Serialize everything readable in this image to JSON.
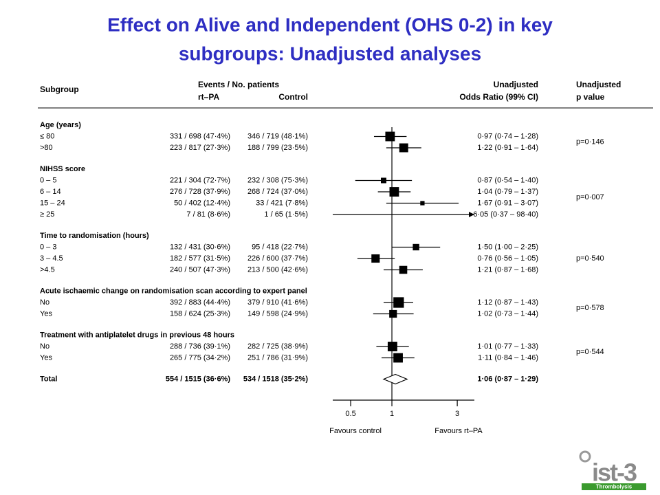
{
  "chart_data": {
    "type": "forest",
    "title": [
      "Effect on Alive and Independent (OHS 0-2) in key",
      "subgroups: Unadjusted analyses"
    ],
    "headers": {
      "subgroup": "Subgroup",
      "events": "Events / No. patients",
      "rtpa": "rt–PA",
      "control": "Control",
      "or_top": "Unadjusted",
      "or_bottom": "Odds Ratio (99% CI)",
      "p_top": "Unadjusted",
      "p_bottom": "p value"
    },
    "x_labels": [
      "Favours control",
      "Favours rt–PA"
    ],
    "xscale": "log",
    "xlim": [
      0.37,
      4
    ],
    "xticks": [
      0.5,
      1,
      3
    ],
    "reference": 1,
    "color": "#000000",
    "groups": [
      {
        "title": "Age (years)",
        "p": "p=0·146",
        "rows": [
          {
            "label": "≤ 80",
            "rtpa": "331 / 698  (47·4%)",
            "control": "346 / 719  (48·1%)",
            "or": 0.97,
            "lo": 0.74,
            "hi": 1.28,
            "or_label": "0·97 (0·74 – 1·28)"
          },
          {
            "label": ">80",
            "rtpa": "223 / 817  (27·3%)",
            "control": "188 / 799  (23·5%)",
            "or": 1.22,
            "lo": 0.91,
            "hi": 1.64,
            "or_label": "1·22 (0·91 – 1·64)"
          }
        ]
      },
      {
        "title": "NIHSS score",
        "p": "p=0·007",
        "rows": [
          {
            "label": "0 – 5",
            "rtpa": "221 / 304  (72·7%)",
            "control": "232 / 308  (75·3%)",
            "or": 0.87,
            "lo": 0.54,
            "hi": 1.4,
            "or_label": "0·87 (0·54 – 1·40)"
          },
          {
            "label": "6 – 14",
            "rtpa": "276 / 728  (37·9%)",
            "control": "268 / 724  (37·0%)",
            "or": 1.04,
            "lo": 0.79,
            "hi": 1.37,
            "or_label": "1·04 (0·79 – 1·37)"
          },
          {
            "label": "15 – 24",
            "rtpa": "50 / 402  (12·4%)",
            "control": "33 / 421  (7·8%)",
            "or": 1.67,
            "lo": 0.91,
            "hi": 3.07,
            "or_label": "1·67 (0·91 – 3·07)"
          },
          {
            "label": "≥ 25",
            "rtpa": "7 / 81  (8·6%)",
            "control": "1 / 65  (1·5%)",
            "or": 6.05,
            "lo": 0.37,
            "hi": 98.4,
            "or_label": "6·05 (0·37 – 98·40)"
          }
        ]
      },
      {
        "title": "Time to randomisation (hours)",
        "p": "p=0·540",
        "rows": [
          {
            "label": "0 – 3",
            "rtpa": "132 / 431  (30·6%)",
            "control": "95 / 418  (22·7%)",
            "or": 1.5,
            "lo": 1.0,
            "hi": 2.25,
            "or_label": "1·50 (1·00 – 2·25)"
          },
          {
            "label": "3 – 4.5",
            "rtpa": "182 / 577  (31·5%)",
            "control": "226 / 600  (37·7%)",
            "or": 0.76,
            "lo": 0.56,
            "hi": 1.05,
            "or_label": "0·76 (0·56 – 1·05)"
          },
          {
            "label": ">4.5",
            "rtpa": "240 / 507  (47·3%)",
            "control": "213 / 500  (42·6%)",
            "or": 1.21,
            "lo": 0.87,
            "hi": 1.68,
            "or_label": "1·21 (0·87 – 1·68)"
          }
        ]
      },
      {
        "title": "Acute ischaemic change on randomisation scan according to expert panel",
        "p": "p=0·578",
        "rows": [
          {
            "label": "No",
            "rtpa": "392 / 883  (44·4%)",
            "control": "379 / 910  (41·6%)",
            "or": 1.12,
            "lo": 0.87,
            "hi": 1.43,
            "or_label": "1·12 (0·87 – 1·43)"
          },
          {
            "label": "Yes",
            "rtpa": "158 / 624  (25·3%)",
            "control": "149 / 598  (24·9%)",
            "or": 1.02,
            "lo": 0.73,
            "hi": 1.44,
            "or_label": "1·02 (0·73 – 1·44)"
          }
        ]
      },
      {
        "title": "Treatment with antiplatelet drugs in previous 48 hours",
        "p": "p=0·544",
        "rows": [
          {
            "label": "No",
            "rtpa": "288 / 736  (39·1%)",
            "control": "282 / 725  (38·9%)",
            "or": 1.01,
            "lo": 0.77,
            "hi": 1.33,
            "or_label": "1·01 (0·77 – 1·33)"
          },
          {
            "label": "Yes",
            "rtpa": "265 / 775  (34·2%)",
            "control": "251 / 786  (31·9%)",
            "or": 1.11,
            "lo": 0.84,
            "hi": 1.46,
            "or_label": "1·11 (0·84 – 1·46)"
          }
        ]
      }
    ],
    "total": {
      "label": "Total",
      "rtpa": "554 / 1515  (36·6%)",
      "control": "534 / 1518  (35·2%)",
      "or": 1.06,
      "lo": 0.87,
      "hi": 1.29,
      "or_label": "1·06 (0·87 – 1·29)"
    },
    "logo": {
      "name": "ist-3",
      "tag": "Thrombolysis"
    }
  }
}
